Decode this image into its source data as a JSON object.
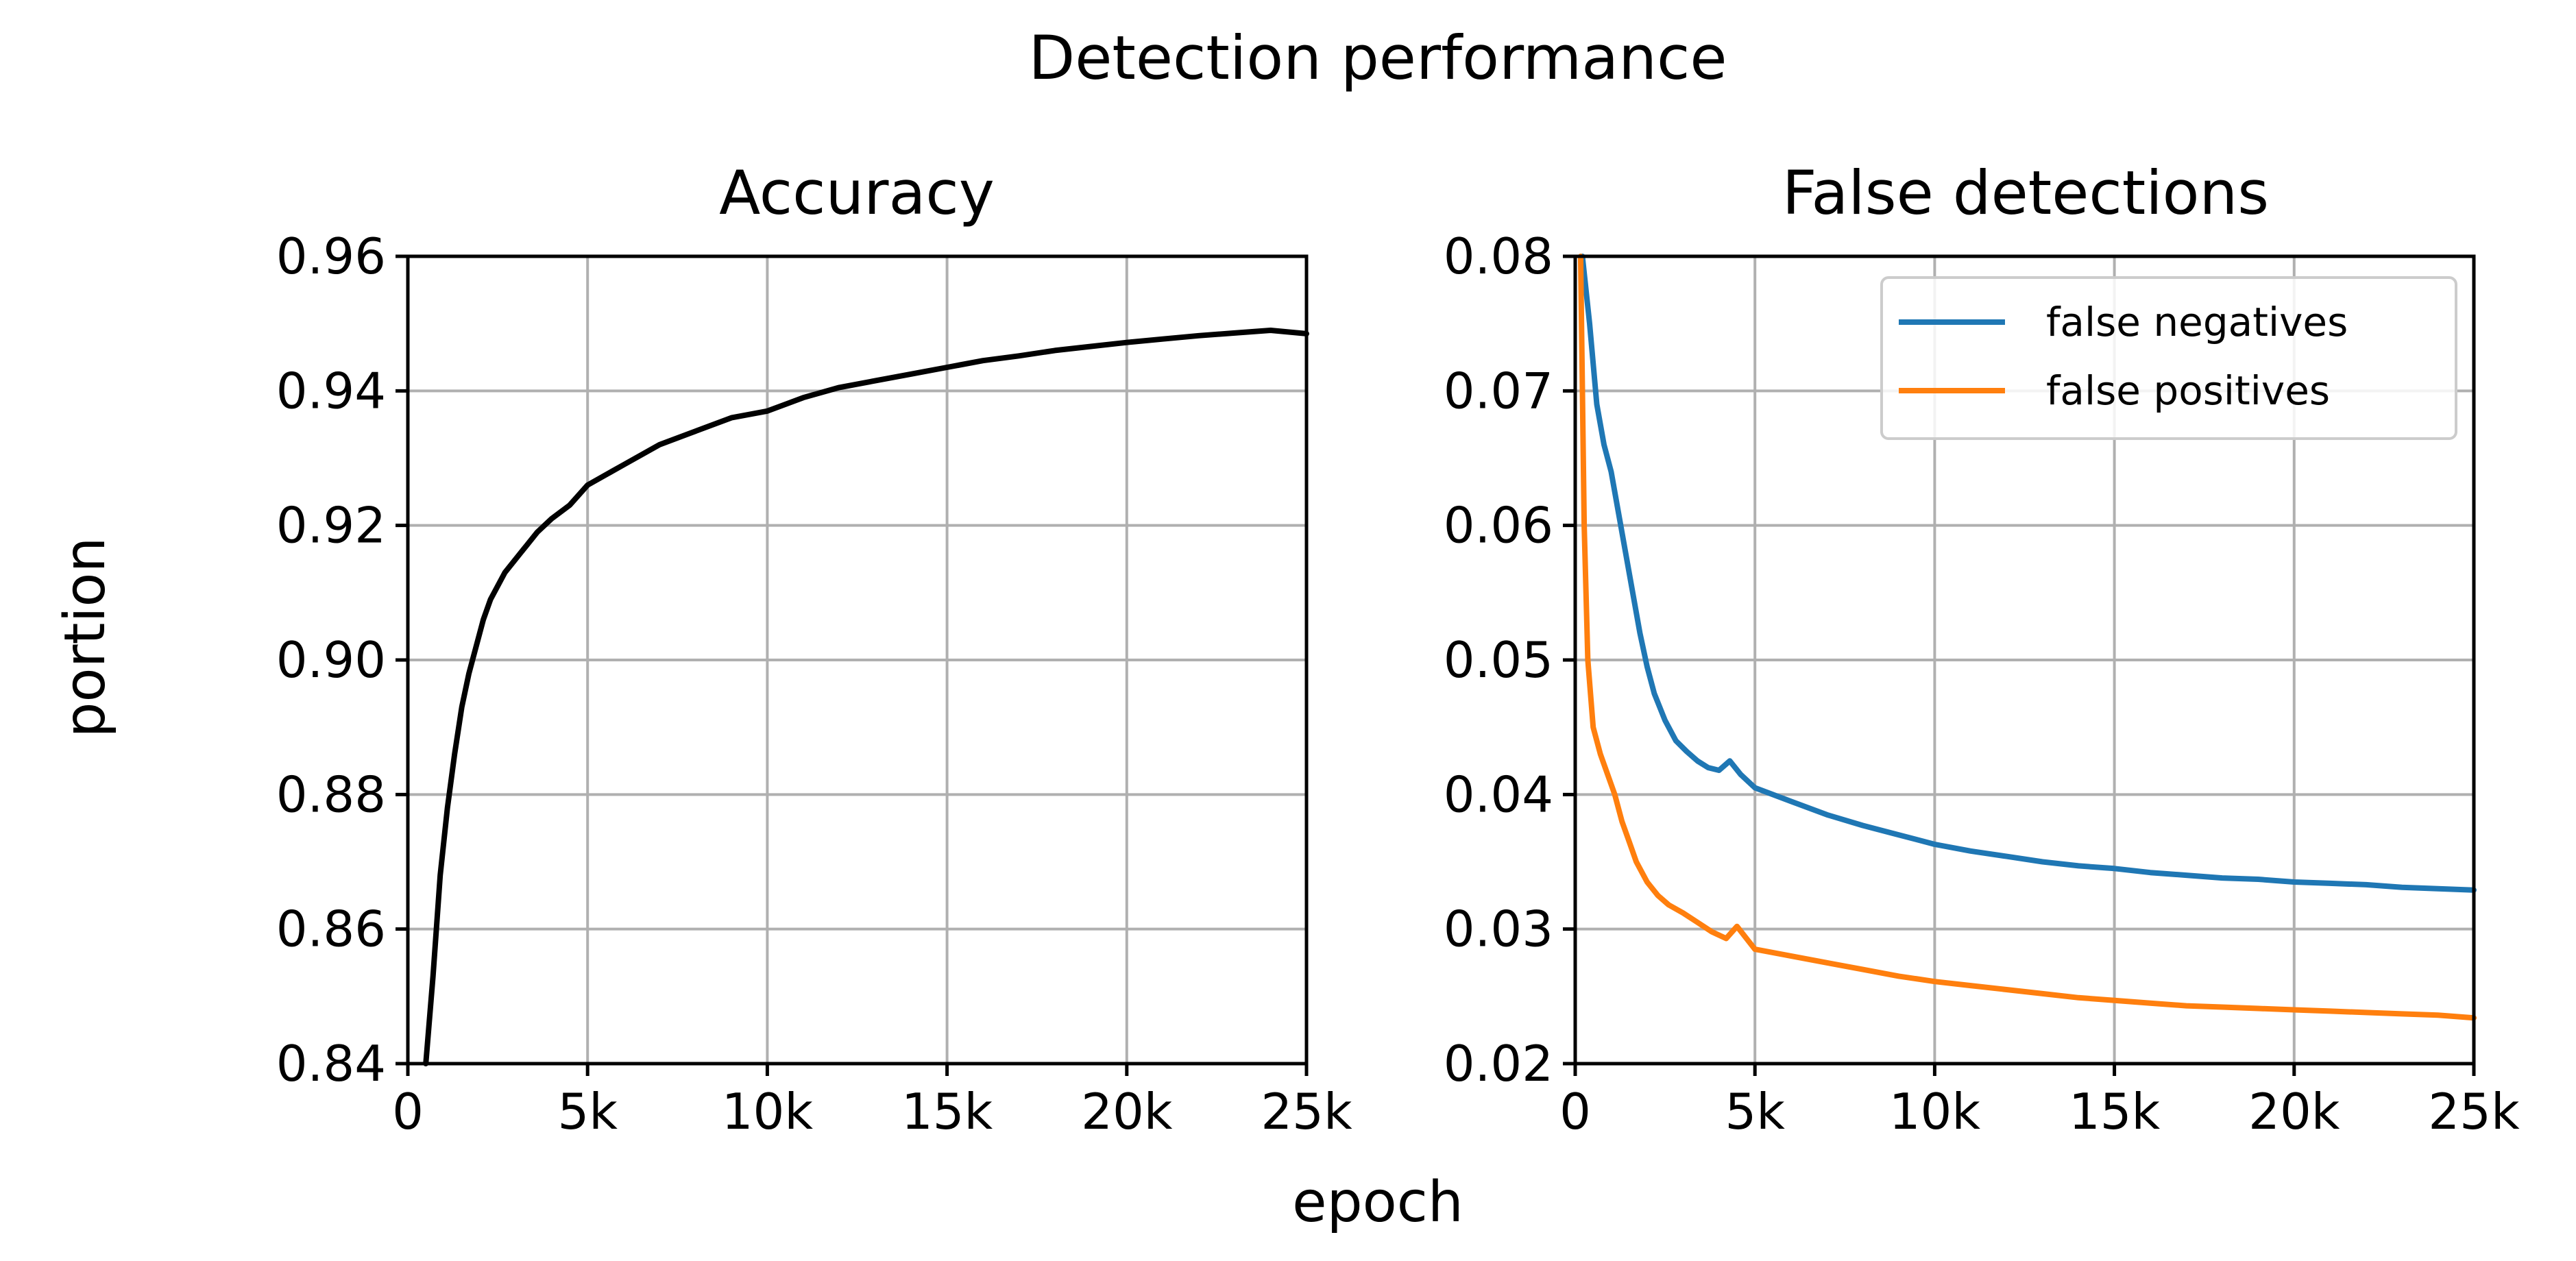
{
  "figure": {
    "title": "Detection performance",
    "xlabel": "epoch",
    "ylabel": "portion"
  },
  "chart_data": [
    {
      "type": "line",
      "title": "Accuracy",
      "xlabel": "epoch",
      "ylabel": "portion",
      "xlim": [
        0,
        25000
      ],
      "ylim": [
        0.84,
        0.96
      ],
      "grid": true,
      "xticks": [
        0,
        5000,
        10000,
        15000,
        20000,
        25000
      ],
      "xtick_labels": [
        "0",
        "5k",
        "10k",
        "15k",
        "20k",
        "25k"
      ],
      "yticks": [
        0.84,
        0.86,
        0.88,
        0.9,
        0.92,
        0.94,
        0.96
      ],
      "ytick_labels": [
        "0.84",
        "0.86",
        "0.88",
        "0.90",
        "0.92",
        "0.94",
        "0.96"
      ],
      "series": [
        {
          "name": "accuracy",
          "color": "#000000",
          "x": [
            500,
            700,
            900,
            1100,
            1300,
            1500,
            1700,
            1900,
            2100,
            2300,
            2500,
            2700,
            3000,
            3300,
            3600,
            4000,
            4500,
            5000,
            6000,
            7000,
            8000,
            9000,
            10000,
            11000,
            12000,
            13000,
            14000,
            15000,
            16000,
            17000,
            18000,
            19000,
            20000,
            21000,
            22000,
            23000,
            24000,
            25000
          ],
          "values": [
            0.84,
            0.853,
            0.868,
            0.878,
            0.886,
            0.893,
            0.898,
            0.902,
            0.906,
            0.909,
            0.911,
            0.913,
            0.915,
            0.917,
            0.919,
            0.921,
            0.923,
            0.926,
            0.929,
            0.932,
            0.934,
            0.936,
            0.937,
            0.939,
            0.9405,
            0.9415,
            0.9425,
            0.9435,
            0.9445,
            0.9452,
            0.946,
            0.9466,
            0.9472,
            0.9477,
            0.9482,
            0.9486,
            0.949,
            0.9485
          ]
        }
      ]
    },
    {
      "type": "line",
      "title": "False detections",
      "xlabel": "epoch",
      "ylabel": "portion",
      "xlim": [
        0,
        25000
      ],
      "ylim": [
        0.02,
        0.08
      ],
      "grid": true,
      "legend": "top-right",
      "xticks": [
        0,
        5000,
        10000,
        15000,
        20000,
        25000
      ],
      "xtick_labels": [
        "0",
        "5k",
        "10k",
        "15k",
        "20k",
        "25k"
      ],
      "yticks": [
        0.02,
        0.03,
        0.04,
        0.05,
        0.06,
        0.07,
        0.08
      ],
      "ytick_labels": [
        "0.02",
        "0.03",
        "0.04",
        "0.05",
        "0.06",
        "0.07",
        "0.08"
      ],
      "series": [
        {
          "name": "false negatives",
          "color": "#1f77b4",
          "x": [
            200,
            400,
            600,
            800,
            1000,
            1200,
            1400,
            1600,
            1800,
            2000,
            2200,
            2500,
            2800,
            3100,
            3400,
            3700,
            4000,
            4300,
            4600,
            5000,
            6000,
            7000,
            8000,
            9000,
            10000,
            11000,
            12000,
            13000,
            14000,
            15000,
            16000,
            17000,
            18000,
            19000,
            20000,
            21000,
            22000,
            23000,
            24000,
            25000
          ],
          "values": [
            0.08,
            0.075,
            0.069,
            0.066,
            0.064,
            0.061,
            0.058,
            0.055,
            0.052,
            0.0495,
            0.0475,
            0.0455,
            0.044,
            0.0432,
            0.0425,
            0.042,
            0.0418,
            0.0425,
            0.0415,
            0.0405,
            0.0395,
            0.0385,
            0.0377,
            0.037,
            0.0363,
            0.0358,
            0.0354,
            0.035,
            0.0347,
            0.0345,
            0.0342,
            0.034,
            0.0338,
            0.0337,
            0.0335,
            0.0334,
            0.0333,
            0.0331,
            0.033,
            0.0329
          ]
        },
        {
          "name": "false positives",
          "color": "#ff7f0e",
          "x": [
            150,
            250,
            350,
            500,
            700,
            900,
            1100,
            1300,
            1500,
            1700,
            2000,
            2300,
            2600,
            3000,
            3400,
            3800,
            4200,
            4500,
            5000,
            6000,
            7000,
            8000,
            9000,
            10000,
            11000,
            12000,
            13000,
            14000,
            15000,
            16000,
            17000,
            18000,
            19000,
            20000,
            21000,
            22000,
            23000,
            24000,
            25000
          ],
          "values": [
            0.08,
            0.06,
            0.05,
            0.045,
            0.043,
            0.0415,
            0.04,
            0.038,
            0.0365,
            0.035,
            0.0335,
            0.0325,
            0.0318,
            0.0312,
            0.0305,
            0.0298,
            0.0293,
            0.0302,
            0.0285,
            0.028,
            0.0275,
            0.027,
            0.0265,
            0.0261,
            0.0258,
            0.0255,
            0.0252,
            0.0249,
            0.0247,
            0.0245,
            0.0243,
            0.0242,
            0.0241,
            0.024,
            0.0239,
            0.0238,
            0.0237,
            0.0236,
            0.0234
          ]
        }
      ]
    }
  ]
}
